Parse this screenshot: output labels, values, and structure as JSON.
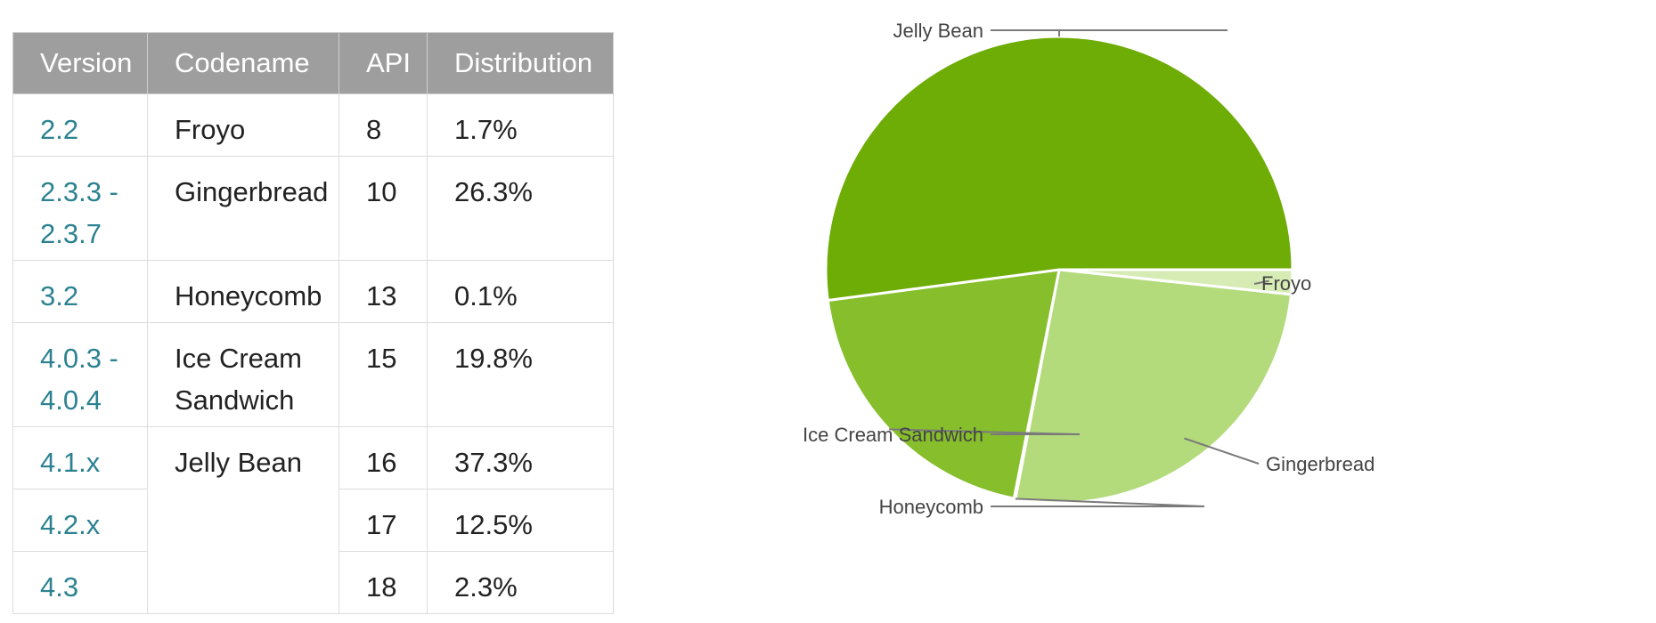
{
  "table": {
    "headers": [
      "Version",
      "Codename",
      "API",
      "Distribution"
    ],
    "rows": [
      {
        "version": [
          "2.2"
        ],
        "codename": [
          "Froyo"
        ],
        "api": "8",
        "distribution": "1.7%"
      },
      {
        "version": [
          "2.3.3 -",
          "2.3.7"
        ],
        "codename": [
          "Gingerbread"
        ],
        "api": "10",
        "distribution": "26.3%"
      },
      {
        "version": [
          "3.2"
        ],
        "codename": [
          "Honeycomb"
        ],
        "api": "13",
        "distribution": "0.1%"
      },
      {
        "version": [
          "4.0.3 -",
          "4.0.4"
        ],
        "codename": [
          "Ice Cream",
          "Sandwich"
        ],
        "api": "15",
        "distribution": "19.8%"
      },
      {
        "version": [
          "4.1.x"
        ],
        "codename": [
          "Jelly Bean"
        ],
        "api": "16",
        "distribution": "37.3%"
      },
      {
        "version": [
          "4.2.x"
        ],
        "codename": [],
        "api": "17",
        "distribution": "12.5%"
      },
      {
        "version": [
          "4.3"
        ],
        "codename": [],
        "api": "18",
        "distribution": "2.3%"
      }
    ]
  },
  "chart_data": {
    "type": "pie",
    "slices": [
      {
        "label": "Froyo",
        "value": 1.7,
        "color": "#d6ecb4"
      },
      {
        "label": "Gingerbread",
        "value": 26.3,
        "color": "#b3db7c"
      },
      {
        "label": "Honeycomb",
        "value": 0.1,
        "color": "#9acc4c"
      },
      {
        "label": "Ice Cream Sandwich",
        "value": 19.8,
        "color": "#86be2c"
      },
      {
        "label": "Jelly Bean",
        "value": 52.1,
        "color": "#6eac06"
      }
    ],
    "start_angle_deg": 0,
    "direction": "clockwise",
    "label_style": "outside-with-leader-lines"
  }
}
